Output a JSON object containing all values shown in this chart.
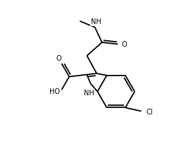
{
  "bg_color": "#ffffff",
  "line_color": "#000000",
  "line_width": 1.3,
  "font_size": 7.0,
  "fig_width": 2.54,
  "fig_height": 2.04,
  "dpi": 100,
  "xlim": [
    0,
    10
  ],
  "ylim": [
    0,
    8
  ]
}
